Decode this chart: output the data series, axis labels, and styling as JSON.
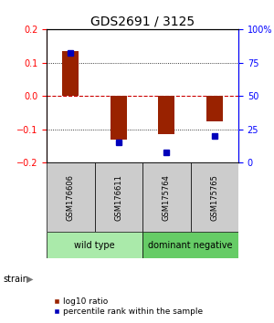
{
  "title": "GDS2691 / 3125",
  "samples": [
    "GSM176606",
    "GSM176611",
    "GSM175764",
    "GSM175765"
  ],
  "log10_ratio": [
    0.135,
    -0.13,
    -0.115,
    -0.075
  ],
  "percentile_rank": [
    82,
    15,
    8,
    20
  ],
  "groups": [
    {
      "label": "wild type",
      "start": 0,
      "end": 2,
      "color": "#aaeaaa"
    },
    {
      "label": "dominant negative",
      "start": 2,
      "end": 4,
      "color": "#66cc66"
    }
  ],
  "bar_color": "#992200",
  "dot_color": "#0000bb",
  "ylim_left": [
    -0.2,
    0.2
  ],
  "ylim_right": [
    0,
    100
  ],
  "yticks_left": [
    -0.2,
    -0.1,
    0.0,
    0.1,
    0.2
  ],
  "yticks_right": [
    0,
    25,
    50,
    75,
    100
  ],
  "ytick_labels_right": [
    "0",
    "25",
    "50",
    "75",
    "100%"
  ],
  "legend_items": [
    {
      "label": "log10 ratio",
      "color": "#992200"
    },
    {
      "label": "percentile rank within the sample",
      "color": "#0000bb"
    }
  ],
  "strain_label": "strain",
  "bar_width": 0.35,
  "background_color": "#ffffff",
  "sample_box_color": "#cccccc",
  "hline_zero_color": "#cc0000",
  "dot_linestyle": "--",
  "tick_fontsize": 7,
  "label_fontsize": 6,
  "group_label_fontsize": 7
}
